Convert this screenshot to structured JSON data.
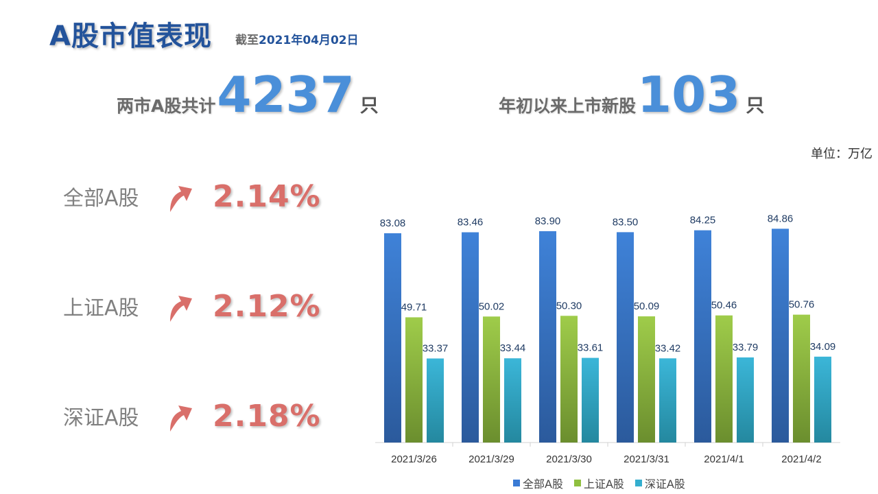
{
  "header": {
    "title": "A股市值表现",
    "subtitle_prefix": "截至",
    "subtitle_date": "2021年04月02日"
  },
  "stats": [
    {
      "pre": "两市A股共计",
      "num": "4237",
      "unit": "只"
    },
    {
      "pre": "年初以来上市新股",
      "num": "103",
      "unit": "只"
    }
  ],
  "unit_label": "单位：万亿",
  "metrics": [
    {
      "name": "全部A股",
      "value": "2.14%",
      "icon": "up-arrow-icon"
    },
    {
      "name": "上证A股",
      "value": "2.12%",
      "icon": "up-arrow-icon"
    },
    {
      "name": "深证A股",
      "value": "2.18%",
      "icon": "up-arrow-icon"
    }
  ],
  "colors": {
    "title": "#23539b",
    "stat_number": "#4a8fd9",
    "metric_value": "#d96f6a",
    "series_all": "#3a7bd5",
    "series_sh": "#8fbf3f",
    "series_sz": "#34aece"
  },
  "chart_data": {
    "type": "bar",
    "categories": [
      "2021/3/26",
      "2021/3/29",
      "2021/3/30",
      "2021/3/31",
      "2021/4/1",
      "2021/4/2"
    ],
    "series": [
      {
        "name": "全部A股",
        "values": [
          83.08,
          83.46,
          83.9,
          83.5,
          84.25,
          84.86
        ]
      },
      {
        "name": "上证A股",
        "values": [
          49.71,
          50.02,
          50.3,
          50.09,
          50.46,
          50.76
        ]
      },
      {
        "name": "深证A股",
        "values": [
          33.37,
          33.44,
          33.61,
          33.42,
          33.79,
          34.09
        ]
      }
    ],
    "ylim": [
      0,
      100
    ],
    "grid": false,
    "data_labels": true,
    "legend": "bottom"
  }
}
